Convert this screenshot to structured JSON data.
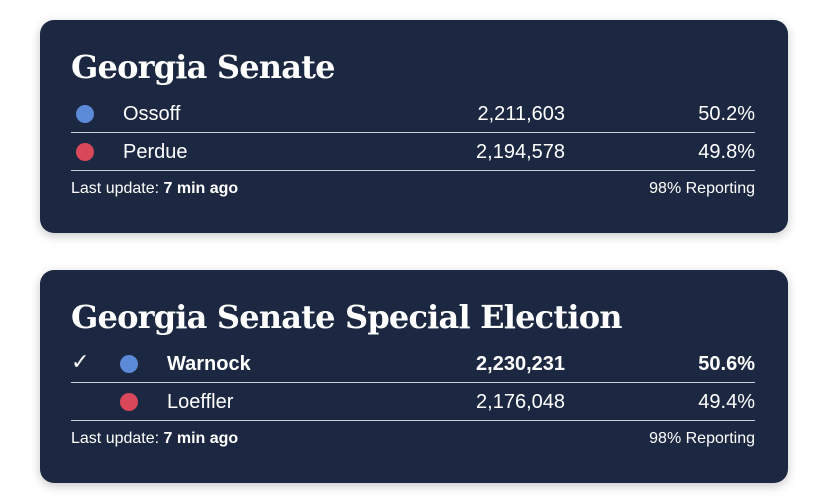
{
  "colors": {
    "card_background": "#1c2841",
    "democrat_dot": "#5b8ad8",
    "republican_dot": "#d9485a",
    "text": "#ffffff"
  },
  "races": [
    {
      "title": "Georgia Senate",
      "candidates": [
        {
          "name": "Ossoff",
          "votes": "2,211,603",
          "percent": "50.2%",
          "party_color": "democrat",
          "winner": false
        },
        {
          "name": "Perdue",
          "votes": "2,194,578",
          "percent": "49.8%",
          "party_color": "republican",
          "winner": false
        }
      ],
      "footer": {
        "update_label": "Last update: ",
        "update_value": "7 min ago",
        "reporting": "98% Reporting"
      }
    },
    {
      "title": "Georgia Senate Special Election",
      "candidates": [
        {
          "name": "Warnock",
          "votes": "2,230,231",
          "percent": "50.6%",
          "party_color": "democrat",
          "winner": true,
          "check": "✓"
        },
        {
          "name": "Loeffler",
          "votes": "2,176,048",
          "percent": "49.4%",
          "party_color": "republican",
          "winner": false
        }
      ],
      "footer": {
        "update_label": "Last update: ",
        "update_value": "7 min ago",
        "reporting": "98% Reporting"
      }
    }
  ]
}
